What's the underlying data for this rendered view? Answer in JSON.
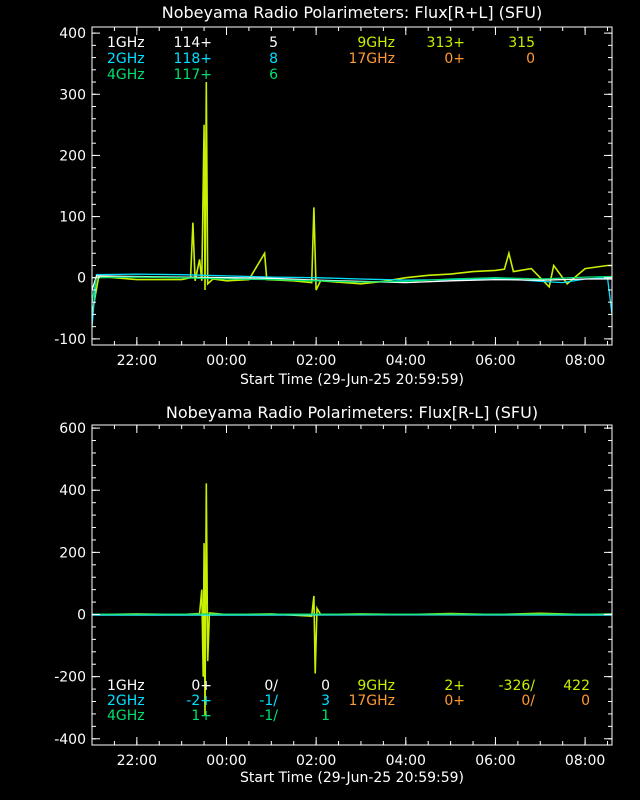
{
  "chart_data": [
    {
      "type": "line",
      "title": "Nobeyama Radio Polarimeters: Flux[R+L] (SFU)",
      "xlabel": "Start Time (29-Jun-25 20:59:59)",
      "ylabel": "",
      "xlim": [
        21.0,
        32.6
      ],
      "ylim": [
        -110,
        410
      ],
      "y_ticks": [
        -100,
        0,
        100,
        200,
        300,
        400
      ],
      "x_ticks": [
        {
          "v": 22,
          "label": "22:00"
        },
        {
          "v": 24,
          "label": "00:00"
        },
        {
          "v": 26,
          "label": "02:00"
        },
        {
          "v": 28,
          "label": "04:00"
        },
        {
          "v": 30,
          "label": "06:00"
        },
        {
          "v": 32,
          "label": "08:00"
        }
      ],
      "legend": [
        {
          "freq": "1GHz",
          "v1": "114+",
          "v2": "5",
          "color": "#ffffff"
        },
        {
          "freq": "2GHz",
          "v1": "118+",
          "v2": "8",
          "color": "#00e0ff"
        },
        {
          "freq": "4GHz",
          "v1": "117+",
          "v2": "6",
          "color": "#00e070"
        },
        {
          "freq": "9GHz",
          "v1": "313+",
          "v2": "315",
          "color": "#c8f000"
        },
        {
          "freq": "17GHz",
          "v1": "0+",
          "v2": "0",
          "color": "#ff9933"
        }
      ],
      "series": [
        {
          "name": "9GHz",
          "color": "#c8f000",
          "points": [
            [
              21.0,
              -60
            ],
            [
              21.15,
              2
            ],
            [
              21.5,
              0
            ],
            [
              22.0,
              -3
            ],
            [
              23.0,
              -3
            ],
            [
              23.2,
              0
            ],
            [
              23.25,
              90
            ],
            [
              23.3,
              -5
            ],
            [
              23.4,
              30
            ],
            [
              23.45,
              -5
            ],
            [
              23.5,
              250
            ],
            [
              23.52,
              -20
            ],
            [
              23.55,
              320
            ],
            [
              23.58,
              -10
            ],
            [
              23.7,
              -2
            ],
            [
              24.0,
              -5
            ],
            [
              24.5,
              -3
            ],
            [
              24.85,
              40
            ],
            [
              24.9,
              -3
            ],
            [
              25.5,
              -5
            ],
            [
              25.9,
              -8
            ],
            [
              25.95,
              115
            ],
            [
              26.0,
              -20
            ],
            [
              26.1,
              -5
            ],
            [
              27.0,
              -10
            ],
            [
              27.5,
              -6
            ],
            [
              28.0,
              0
            ],
            [
              28.5,
              4
            ],
            [
              29.0,
              6
            ],
            [
              29.5,
              10
            ],
            [
              30.0,
              12
            ],
            [
              30.2,
              14
            ],
            [
              30.3,
              40
            ],
            [
              30.4,
              10
            ],
            [
              30.8,
              15
            ],
            [
              31.2,
              -15
            ],
            [
              31.3,
              20
            ],
            [
              31.6,
              -10
            ],
            [
              32.0,
              15
            ],
            [
              32.5,
              20
            ],
            [
              32.6,
              20
            ]
          ]
        },
        {
          "name": "2GHz",
          "color": "#00e0ff",
          "points": [
            [
              21.0,
              -80
            ],
            [
              21.1,
              5
            ],
            [
              22.0,
              6
            ],
            [
              23.0,
              5
            ],
            [
              24.0,
              3
            ],
            [
              25.0,
              1
            ],
            [
              26.0,
              0
            ],
            [
              27.0,
              -2
            ],
            [
              28.0,
              -4
            ],
            [
              29.0,
              -3
            ],
            [
              30.0,
              -1
            ],
            [
              30.5,
              -3
            ],
            [
              31.0,
              -6
            ],
            [
              31.5,
              -8
            ],
            [
              32.0,
              -2
            ],
            [
              32.5,
              0
            ],
            [
              32.6,
              -60
            ]
          ]
        },
        {
          "name": "1GHz",
          "color": "#ffffff",
          "points": [
            [
              21.0,
              -20
            ],
            [
              21.1,
              3
            ],
            [
              22.0,
              2
            ],
            [
              23.0,
              1
            ],
            [
              24.0,
              0
            ],
            [
              25.0,
              -1
            ],
            [
              26.0,
              -4
            ],
            [
              27.0,
              -6
            ],
            [
              28.0,
              -8
            ],
            [
              29.0,
              -5
            ],
            [
              30.0,
              -3
            ],
            [
              31.0,
              -4
            ],
            [
              32.0,
              -2
            ],
            [
              32.6,
              -2
            ]
          ]
        },
        {
          "name": "4GHz",
          "color": "#00e070",
          "points": [
            [
              21.0,
              -40
            ],
            [
              21.1,
              0
            ],
            [
              22.0,
              1
            ],
            [
              23.0,
              0
            ],
            [
              24.0,
              -2
            ],
            [
              25.0,
              -3
            ],
            [
              26.0,
              -5
            ],
            [
              27.0,
              -7
            ],
            [
              28.0,
              -6
            ],
            [
              29.0,
              -2
            ],
            [
              30.0,
              0
            ],
            [
              31.0,
              -2
            ],
            [
              32.0,
              1
            ],
            [
              32.6,
              2
            ]
          ]
        }
      ]
    },
    {
      "type": "line",
      "title": "Nobeyama Radio Polarimeters: Flux[R-L] (SFU)",
      "xlabel": "Start Time (29-Jun-25 20:59:59)",
      "ylabel": "",
      "xlim": [
        21.0,
        32.6
      ],
      "ylim": [
        -420,
        610
      ],
      "y_ticks": [
        -400,
        -200,
        0,
        200,
        400,
        600
      ],
      "x_ticks": [
        {
          "v": 22,
          "label": "22:00"
        },
        {
          "v": 24,
          "label": "00:00"
        },
        {
          "v": 26,
          "label": "02:00"
        },
        {
          "v": 28,
          "label": "04:00"
        },
        {
          "v": 30,
          "label": "06:00"
        },
        {
          "v": 32,
          "label": "08:00"
        }
      ],
      "legend": [
        {
          "freq": "1GHz",
          "v1": "0+",
          "v2": "0/",
          "v3": "0",
          "color": "#ffffff"
        },
        {
          "freq": "2GHz",
          "v1": "-2+",
          "v2": "-1/",
          "v3": "3",
          "color": "#00e0ff"
        },
        {
          "freq": "4GHz",
          "v1": "1+",
          "v2": "-1/",
          "v3": "1",
          "color": "#00e070"
        },
        {
          "freq": "9GHz",
          "v1": "2+",
          "v2": "-326/",
          "v3": "422",
          "color": "#c8f000"
        },
        {
          "freq": "17GHz",
          "v1": "0+",
          "v2": "0/",
          "v3": "0",
          "color": "#ff9933"
        }
      ],
      "series": [
        {
          "name": "9GHz",
          "color": "#c8f000",
          "points": [
            [
              21.0,
              0
            ],
            [
              22.0,
              2
            ],
            [
              23.0,
              0
            ],
            [
              23.4,
              3
            ],
            [
              23.45,
              80
            ],
            [
              23.48,
              -200
            ],
            [
              23.5,
              230
            ],
            [
              23.52,
              -326
            ],
            [
              23.55,
              422
            ],
            [
              23.58,
              -150
            ],
            [
              23.62,
              5
            ],
            [
              24.0,
              0
            ],
            [
              25.0,
              2
            ],
            [
              25.9,
              -5
            ],
            [
              25.95,
              60
            ],
            [
              25.98,
              -190
            ],
            [
              26.02,
              20
            ],
            [
              26.1,
              0
            ],
            [
              27.0,
              2
            ],
            [
              28.0,
              0
            ],
            [
              29.0,
              3
            ],
            [
              30.0,
              0
            ],
            [
              31.0,
              4
            ],
            [
              32.0,
              0
            ],
            [
              32.6,
              2
            ]
          ]
        },
        {
          "name": "2GHz",
          "color": "#00e0ff",
          "points": [
            [
              21.0,
              -2
            ],
            [
              24.0,
              -2
            ],
            [
              28.0,
              -1
            ],
            [
              32.6,
              -2
            ]
          ]
        },
        {
          "name": "1GHz",
          "color": "#ffffff",
          "points": [
            [
              21.0,
              0
            ],
            [
              32.6,
              0
            ]
          ]
        },
        {
          "name": "4GHz",
          "color": "#00e070",
          "points": [
            [
              21.0,
              1
            ],
            [
              32.6,
              1
            ]
          ]
        }
      ]
    }
  ]
}
